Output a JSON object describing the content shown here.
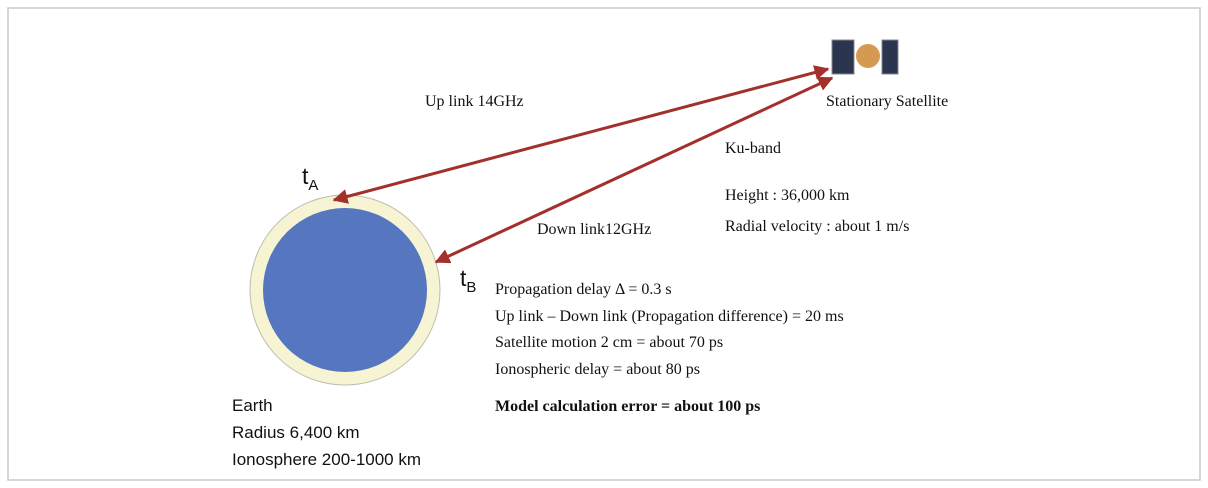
{
  "satellite": {
    "label": "Stationary Satellite"
  },
  "links": {
    "up": "Up link 14GHz",
    "down": "Down link12GHz"
  },
  "satellite_info": {
    "band": "Ku-band",
    "height": "Height : 36,000 km",
    "velocity": "Radial velocity : about 1 m/s"
  },
  "times": {
    "a": {
      "main": "t",
      "sub": "A"
    },
    "b": {
      "main": "t",
      "sub": "B"
    }
  },
  "delays": [
    "Propagation delay Δ = 0.3 s",
    "Up link – Down link (Propagation difference) = 20 ms",
    "Satellite motion 2 cm = about 70 ps",
    "Ionospheric delay = about 80 ps"
  ],
  "error": "Model calculation error = about 100 ps",
  "earth": [
    "Earth",
    "Radius 6,400 km",
    "Ionosphere 200-1000 km"
  ]
}
